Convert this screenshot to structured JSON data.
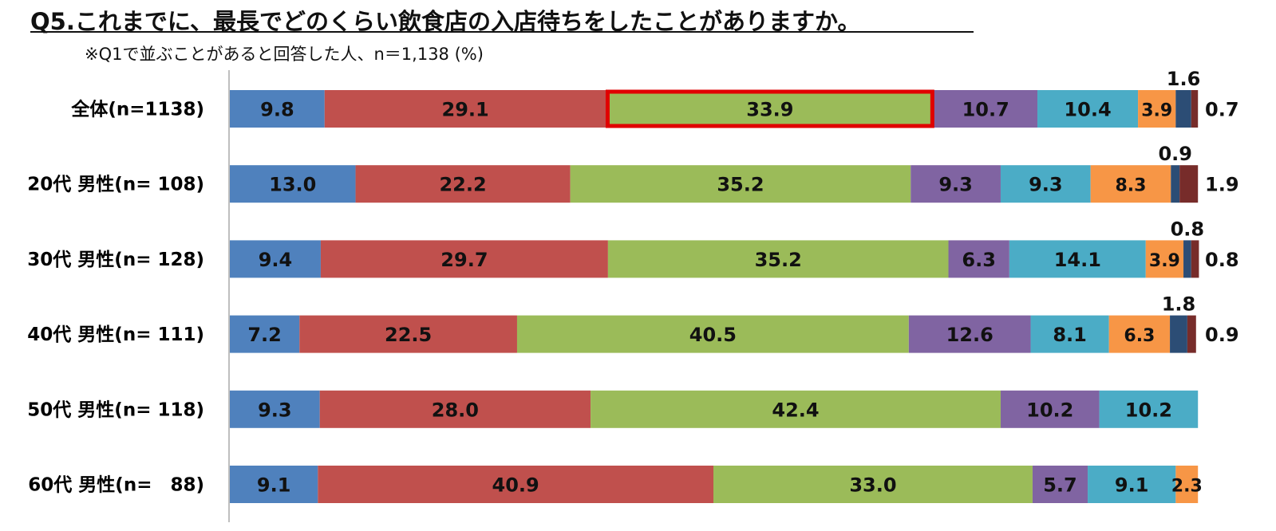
{
  "header": {
    "title": "Q5.これまでに、最長でどのくらい飲食店の入店待ちをしたことがありますか。",
    "subtitle": "※Q1で並ぶことがあると回答した人、n＝1,138 (%)"
  },
  "chart_data": {
    "type": "bar",
    "orientation": "horizontal",
    "stacked": true,
    "normalized": true,
    "xlim": [
      0,
      100
    ],
    "grid": false,
    "legend": "none",
    "categories": [
      "全体(n=1138)",
      "20代 男性(n= 108)",
      "30代 男性(n= 128)",
      "40代 男性(n= 111)",
      "50代 男性(n= 118)",
      "60代 男性(n=　88)"
    ],
    "colors": [
      "#4f81bd",
      "#c0504d",
      "#9bbb59",
      "#8064a2",
      "#4bacc6",
      "#f79646",
      "#2c4d75",
      "#772c2a"
    ],
    "series": [
      {
        "values": [
          9.8,
          13.0,
          9.4,
          7.2,
          9.3,
          9.1
        ]
      },
      {
        "values": [
          29.1,
          22.2,
          29.7,
          22.5,
          28.0,
          40.9
        ]
      },
      {
        "values": [
          33.9,
          35.2,
          35.2,
          40.5,
          42.4,
          33.0
        ]
      },
      {
        "values": [
          10.7,
          9.3,
          6.3,
          12.6,
          10.2,
          5.7
        ]
      },
      {
        "values": [
          10.4,
          9.3,
          14.1,
          8.1,
          10.2,
          9.1
        ]
      },
      {
        "values": [
          3.9,
          8.3,
          3.9,
          6.3,
          0,
          2.3
        ]
      },
      {
        "values": [
          1.6,
          0.9,
          0.8,
          1.8,
          0,
          0
        ]
      },
      {
        "values": [
          0.7,
          1.9,
          0.8,
          0.9,
          0,
          0
        ]
      }
    ],
    "annotations": [
      {
        "type": "highlight-box",
        "row": 0,
        "segment": 2,
        "color": "#e00000"
      }
    ]
  }
}
